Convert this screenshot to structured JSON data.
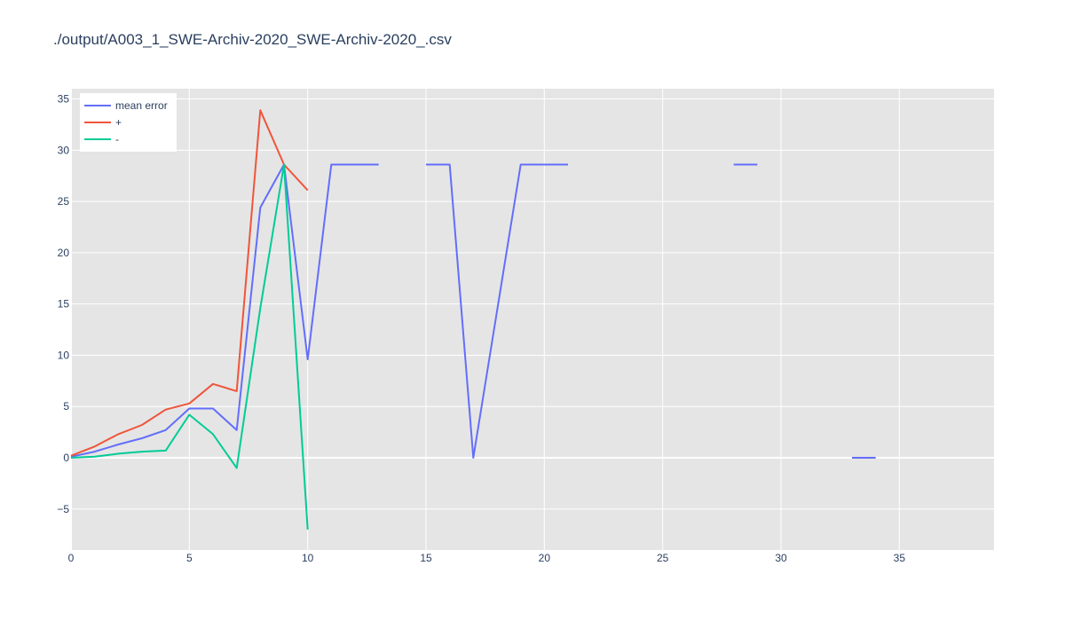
{
  "chart_data": {
    "type": "line",
    "title": "./output/A003_1_SWE-Archiv-2020_SWE-Archiv-2020_.csv",
    "xlabel": "",
    "ylabel": "",
    "xlim": [
      0,
      39
    ],
    "ylim": [
      -9,
      36
    ],
    "x_ticks": [
      0,
      5,
      10,
      15,
      20,
      25,
      30,
      35
    ],
    "x_tick_labels": [
      "0",
      "5",
      "10",
      "15",
      "20",
      "25",
      "30",
      "35"
    ],
    "y_ticks": [
      -5,
      0,
      5,
      10,
      15,
      20,
      25,
      30,
      35
    ],
    "y_tick_labels": [
      "−5",
      "0",
      "5",
      "10",
      "15",
      "20",
      "25",
      "30",
      "35"
    ],
    "grid": true,
    "legend_position": "top-left",
    "colors": {
      "plot_background": "#e5e5e5",
      "grid": "#ffffff",
      "text": "#2a3f5f"
    },
    "series": [
      {
        "name": "mean error",
        "color": "#636efa",
        "x": [
          0,
          1,
          2,
          3,
          4,
          5,
          6,
          7,
          8,
          9,
          10,
          11,
          12,
          13,
          14,
          15,
          16,
          17,
          18,
          19,
          20,
          21,
          22,
          23,
          24,
          25,
          26,
          27,
          28,
          29,
          30,
          31,
          32,
          33,
          34
        ],
        "y": [
          0.1,
          0.6,
          1.3,
          1.9,
          2.7,
          4.8,
          4.8,
          2.7,
          24.4,
          28.6,
          9.6,
          28.6,
          28.6,
          28.6,
          null,
          28.6,
          28.6,
          0.0,
          14.3,
          28.6,
          28.6,
          28.6,
          null,
          null,
          null,
          null,
          null,
          null,
          28.6,
          28.6,
          null,
          null,
          null,
          0.0,
          0.0
        ]
      },
      {
        "name": "+",
        "color": "#ef553b",
        "x": [
          0,
          1,
          2,
          3,
          4,
          5,
          6,
          7,
          8,
          9,
          10
        ],
        "y": [
          0.2,
          1.1,
          2.3,
          3.2,
          4.7,
          5.3,
          7.2,
          6.5,
          33.9,
          28.6,
          26.1
        ]
      },
      {
        "name": "-",
        "color": "#00cc96",
        "x": [
          0,
          1,
          2,
          3,
          4,
          5,
          6,
          7,
          8,
          9,
          10
        ],
        "y": [
          0.0,
          0.1,
          0.4,
          0.6,
          0.7,
          4.2,
          2.3,
          -1.0,
          14.6,
          28.6,
          -7.0
        ]
      }
    ]
  }
}
